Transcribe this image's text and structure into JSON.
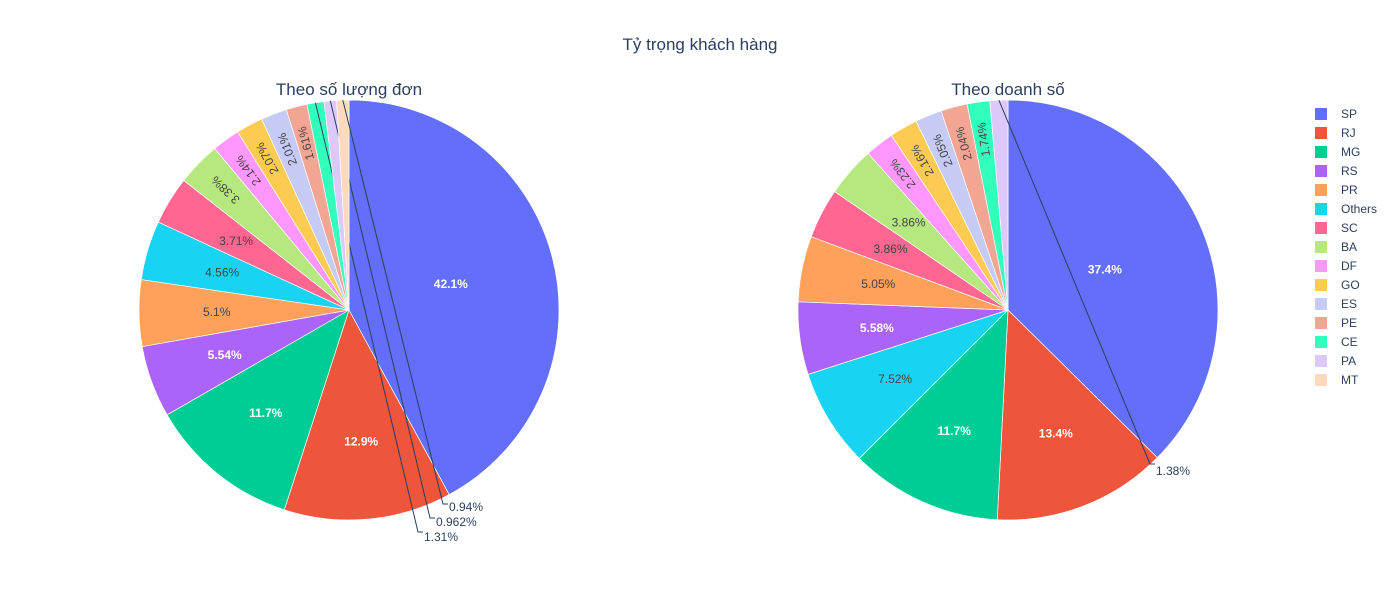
{
  "title": "Tỷ trọng khách hàng",
  "legend_position": "right",
  "legend": [
    "SP",
    "RJ",
    "MG",
    "RS",
    "PR",
    "Others",
    "SC",
    "BA",
    "DF",
    "GO",
    "ES",
    "PE",
    "CE",
    "PA",
    "MT"
  ],
  "colors": {
    "SP": "#636efa",
    "RJ": "#ef553b",
    "MG": "#00cc96",
    "RS": "#ab63fa",
    "PR": "#ffa15a",
    "Others": "#19d3f3",
    "SC": "#ff6692",
    "BA": "#b6e880",
    "DF": "#ff97ff",
    "GO": "#fecb52",
    "ES": "#c6cbf5",
    "PE": "#f3a594",
    "CE": "#33ffbd",
    "PA": "#dcc8f9",
    "MT": "#fdd9bd"
  },
  "chart_data": [
    {
      "type": "pie",
      "title": "Theo số lượng đơn",
      "slices": [
        {
          "label": "SP",
          "value": 42.1,
          "text": "42.1%"
        },
        {
          "label": "RJ",
          "value": 12.9,
          "text": "12.9%"
        },
        {
          "label": "MG",
          "value": 11.7,
          "text": "11.7%"
        },
        {
          "label": "RS",
          "value": 5.54,
          "text": "5.54%"
        },
        {
          "label": "PR",
          "value": 5.1,
          "text": "5.1%"
        },
        {
          "label": "Others",
          "value": 4.56,
          "text": "4.56%"
        },
        {
          "label": "SC",
          "value": 3.71,
          "text": "3.71%"
        },
        {
          "label": "BA",
          "value": 3.38,
          "text": "3.38%"
        },
        {
          "label": "DF",
          "value": 2.14,
          "text": "2.14%"
        },
        {
          "label": "GO",
          "value": 2.07,
          "text": "2.07%"
        },
        {
          "label": "ES",
          "value": 2.01,
          "text": "2.01%"
        },
        {
          "label": "PE",
          "value": 1.61,
          "text": "1.61%"
        },
        {
          "label": "CE",
          "value": 1.31,
          "text": "1.31%"
        },
        {
          "label": "PA",
          "value": 0.962,
          "text": "0.962%"
        },
        {
          "label": "MT",
          "value": 0.94,
          "text": "0.94%"
        }
      ]
    },
    {
      "type": "pie",
      "title": "Theo doanh số",
      "slices": [
        {
          "label": "SP",
          "value": 37.4,
          "text": "37.4%"
        },
        {
          "label": "RJ",
          "value": 13.4,
          "text": "13.4%"
        },
        {
          "label": "MG",
          "value": 11.7,
          "text": "11.7%"
        },
        {
          "label": "Others",
          "value": 7.52,
          "text": "7.52%"
        },
        {
          "label": "RS",
          "value": 5.58,
          "text": "5.58%"
        },
        {
          "label": "PR",
          "value": 5.05,
          "text": "5.05%"
        },
        {
          "label": "SC",
          "value": 3.86,
          "text": "3.86%"
        },
        {
          "label": "BA",
          "value": 3.86,
          "text": "3.86%"
        },
        {
          "label": "DF",
          "value": 2.23,
          "text": "2.23%"
        },
        {
          "label": "GO",
          "value": 2.16,
          "text": "2.16%"
        },
        {
          "label": "ES",
          "value": 2.05,
          "text": "2.05%"
        },
        {
          "label": "PE",
          "value": 2.04,
          "text": "2.04%"
        },
        {
          "label": "CE",
          "value": 1.74,
          "text": "1.74%"
        },
        {
          "label": "PA",
          "value": 1.38,
          "text": "1.38%"
        }
      ]
    }
  ]
}
